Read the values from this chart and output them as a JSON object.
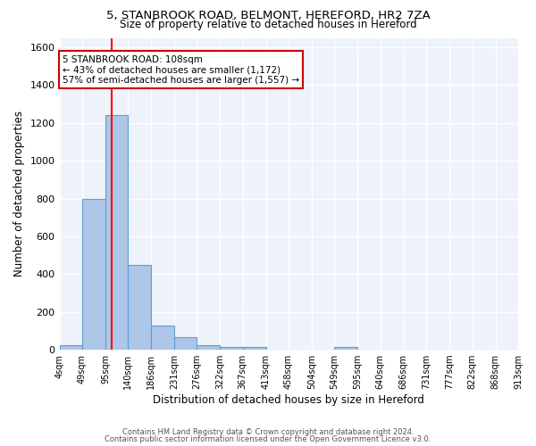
{
  "title1": "5, STANBROOK ROAD, BELMONT, HEREFORD, HR2 7ZA",
  "title2": "Size of property relative to detached houses in Hereford",
  "xlabel": "Distribution of detached houses by size in Hereford",
  "ylabel": "Number of detached properties",
  "bar_color": "#aec6e8",
  "bar_edge_color": "#5a9fd4",
  "bg_color": "#eef2fb",
  "grid_color": "#ffffff",
  "bin_edges": [
    4,
    49,
    95,
    140,
    186,
    231,
    276,
    322,
    367,
    413,
    458,
    504,
    549,
    595,
    640,
    686,
    731,
    777,
    822,
    868,
    913
  ],
  "bar_heights": [
    25,
    800,
    1240,
    450,
    130,
    65,
    25,
    15,
    15,
    0,
    0,
    0,
    15,
    0,
    0,
    0,
    0,
    0,
    0,
    0
  ],
  "property_size": 108,
  "red_line_x": 108,
  "annotation_text": "5 STANBROOK ROAD: 108sqm\n← 43% of detached houses are smaller (1,172)\n57% of semi-detached houses are larger (1,557) →",
  "annotation_box_color": "#ffffff",
  "annotation_box_edge_color": "#cc0000",
  "footer1": "Contains HM Land Registry data © Crown copyright and database right 2024.",
  "footer2": "Contains public sector information licensed under the Open Government Licence v3.0.",
  "ylim": [
    0,
    1650
  ],
  "yticks": [
    0,
    200,
    400,
    600,
    800,
    1000,
    1200,
    1400,
    1600
  ]
}
